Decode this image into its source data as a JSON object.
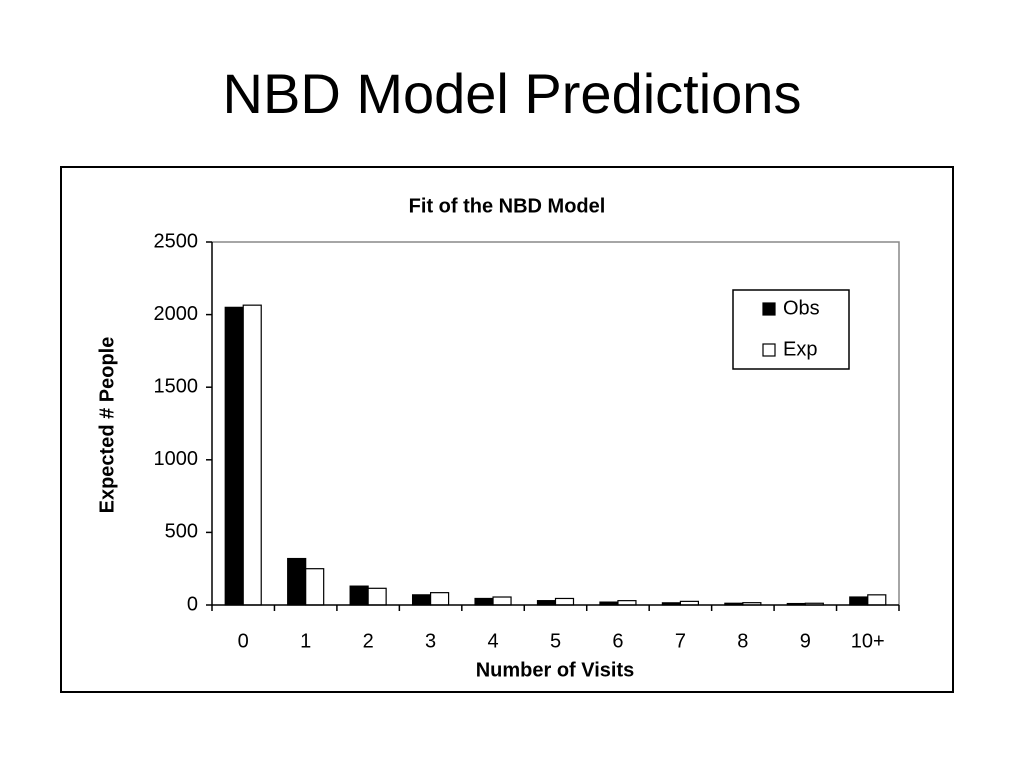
{
  "slide_title": "NBD Model Predictions",
  "chart_data": {
    "type": "bar",
    "title": "Fit of the NBD Model",
    "x_label": "Number of Visits",
    "y_label": "Expected # People",
    "categories": [
      "0",
      "1",
      "2",
      "3",
      "4",
      "5",
      "6",
      "7",
      "8",
      "9",
      "10+"
    ],
    "series": [
      {
        "name": "Obs",
        "color": "#000000",
        "values": [
          2050,
          320,
          130,
          70,
          45,
          30,
          20,
          15,
          12,
          10,
          55
        ]
      },
      {
        "name": "Exp",
        "color": "#ffffff",
        "values": [
          2065,
          250,
          115,
          85,
          55,
          45,
          30,
          25,
          16,
          12,
          70
        ]
      }
    ],
    "ylim": [
      0,
      2500
    ],
    "yticks": [
      0,
      500,
      1000,
      1500,
      2000,
      2500
    ],
    "legend": "top-right"
  }
}
